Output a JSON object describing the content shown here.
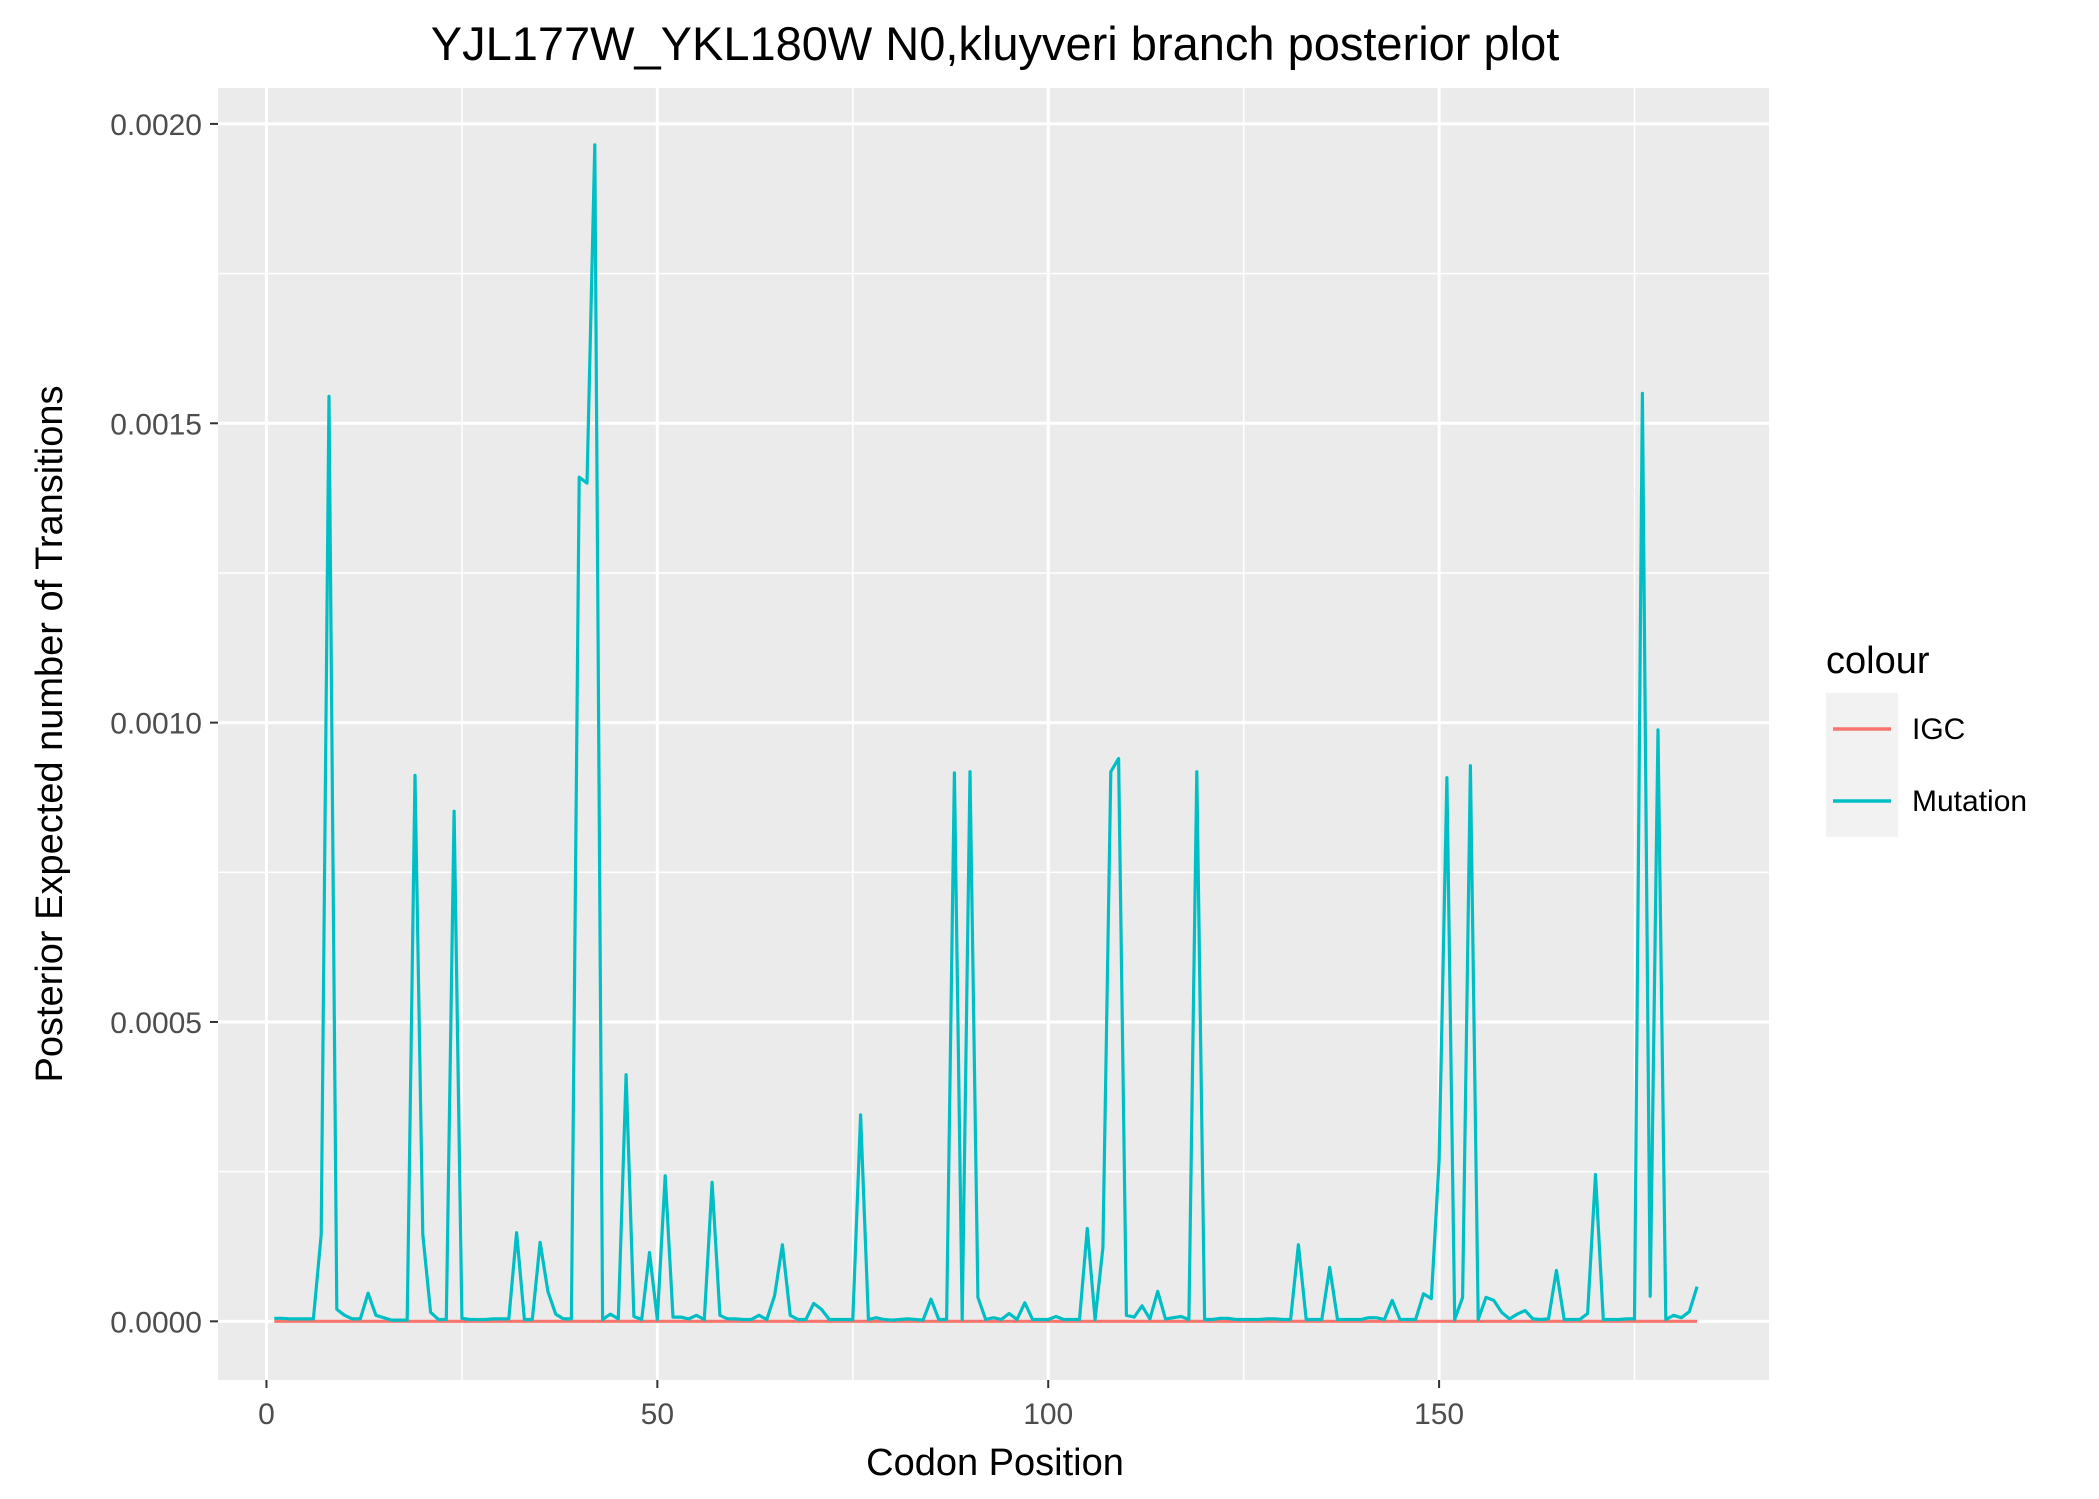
{
  "chart_data": {
    "type": "line",
    "title": "YJL177W_YKL180W N0,kluyveri branch posterior plot",
    "xlabel": "Codon Position",
    "ylabel": "Posterior Expected number of Transitions",
    "xlim": [
      -6.2,
      192.2
    ],
    "ylim": [
      -9.8e-05,
      0.00206
    ],
    "x_ticks": [
      0,
      50,
      100,
      150
    ],
    "x_tick_labels": [
      "0",
      "50",
      "100",
      "150"
    ],
    "y_ticks": [
      0,
      0.0005,
      0.001,
      0.0015,
      0.002
    ],
    "y_tick_labels": [
      "0.0000",
      "0.0005",
      "0.0010",
      "0.0015",
      "0.0020"
    ],
    "grid": true,
    "legend": {
      "title": "colour",
      "position": "right"
    },
    "series": [
      {
        "name": "IGC",
        "color": "#F8766D",
        "x": [
          1,
          183
        ],
        "y": [
          0,
          0
        ]
      },
      {
        "name": "Mutation",
        "color": "#00BFC4",
        "x": [
          1,
          2,
          3,
          4,
          5,
          6,
          7,
          8,
          9,
          10,
          11,
          12,
          13,
          14,
          15,
          16,
          17,
          18,
          19,
          20,
          21,
          22,
          23,
          24,
          25,
          26,
          27,
          28,
          29,
          30,
          31,
          32,
          33,
          34,
          35,
          36,
          37,
          38,
          39,
          40,
          41,
          42,
          43,
          44,
          45,
          46,
          47,
          48,
          49,
          50,
          51,
          52,
          53,
          54,
          55,
          56,
          57,
          58,
          59,
          60,
          61,
          62,
          63,
          64,
          65,
          66,
          67,
          68,
          69,
          70,
          71,
          72,
          73,
          74,
          75,
          76,
          77,
          78,
          79,
          80,
          81,
          82,
          83,
          84,
          85,
          86,
          87,
          88,
          89,
          90,
          91,
          92,
          93,
          94,
          95,
          96,
          97,
          98,
          99,
          100,
          101,
          102,
          103,
          104,
          105,
          106,
          107,
          108,
          109,
          110,
          111,
          112,
          113,
          114,
          115,
          116,
          117,
          118,
          119,
          120,
          121,
          122,
          123,
          124,
          125,
          126,
          127,
          128,
          129,
          130,
          131,
          132,
          133,
          134,
          135,
          136,
          137,
          138,
          139,
          140,
          141,
          142,
          143,
          144,
          145,
          146,
          147,
          148,
          149,
          150,
          151,
          152,
          153,
          154,
          155,
          156,
          157,
          158,
          159,
          160,
          161,
          162,
          163,
          164,
          165,
          166,
          167,
          168,
          169,
          170,
          171,
          172,
          173,
          174,
          175,
          176,
          177,
          178,
          179,
          180,
          181,
          182,
          183
        ],
        "y": [
          5e-06,
          5e-06,
          4e-06,
          4e-06,
          4e-06,
          4e-06,
          0.000145,
          0.001545,
          2e-05,
          1e-05,
          4e-06,
          4e-06,
          4.7e-05,
          1e-05,
          6e-06,
          2e-06,
          2e-06,
          2e-06,
          0.000912,
          0.000145,
          1.5e-05,
          3e-06,
          3e-06,
          0.000852,
          5e-06,
          3e-06,
          3e-06,
          3e-06,
          4e-06,
          4e-06,
          4e-06,
          0.000148,
          3e-06,
          3e-06,
          0.000132,
          5e-05,
          1.2e-05,
          4e-06,
          4e-06,
          0.00141,
          0.0014,
          0.001965,
          3e-06,
          1.2e-05,
          4e-06,
          0.000412,
          8e-06,
          3e-06,
          0.000115,
          3e-06,
          0.000243,
          7e-06,
          7e-06,
          4e-06,
          1e-05,
          3e-06,
          0.000232,
          1e-05,
          4e-06,
          4e-06,
          3e-06,
          3e-06,
          1e-05,
          3e-06,
          4.3e-05,
          0.000128,
          1e-05,
          3e-06,
          3e-06,
          3e-05,
          2e-05,
          3e-06,
          3e-06,
          3e-06,
          3e-06,
          0.000345,
          3e-06,
          6e-06,
          3e-06,
          2e-06,
          3e-06,
          4e-06,
          3e-06,
          2e-06,
          3.7e-05,
          3e-06,
          3e-06,
          0.000916,
          3e-06,
          0.000918,
          4e-05,
          3e-06,
          6e-06,
          3e-06,
          1.3e-05,
          3e-06,
          3.1e-05,
          3e-06,
          3e-06,
          3e-06,
          8e-06,
          3e-06,
          3e-06,
          3e-06,
          0.000155,
          3e-06,
          0.000123,
          0.000918,
          0.00094,
          1e-05,
          7e-06,
          2.6e-05,
          4e-06,
          5e-05,
          4e-06,
          6e-06,
          8e-06,
          3e-06,
          0.000918,
          3e-06,
          3e-06,
          5e-06,
          5e-06,
          3e-06,
          3e-06,
          3e-06,
          3e-06,
          4e-06,
          4e-06,
          3e-06,
          3e-06,
          0.000128,
          3e-06,
          3e-06,
          3e-06,
          9e-05,
          3e-06,
          3e-06,
          3e-06,
          3e-06,
          6e-06,
          6e-06,
          3e-06,
          3.5e-05,
          3e-06,
          3e-06,
          3e-06,
          4.6e-05,
          3.8e-05,
          0.000268,
          0.000908,
          3e-06,
          4e-05,
          0.000928,
          3e-06,
          4e-05,
          3.5e-05,
          1.5e-05,
          4e-06,
          1.2e-05,
          1.8e-05,
          4e-06,
          3e-06,
          4e-06,
          8.5e-05,
          3e-06,
          3e-06,
          3e-06,
          1.3e-05,
          0.000245,
          3e-06,
          3e-06,
          3e-06,
          4e-06,
          4e-06,
          0.00155,
          4.2e-05,
          0.000988,
          3e-06,
          1e-05,
          6e-06,
          1.6e-05,
          5.8e-05
        ]
      }
    ]
  }
}
